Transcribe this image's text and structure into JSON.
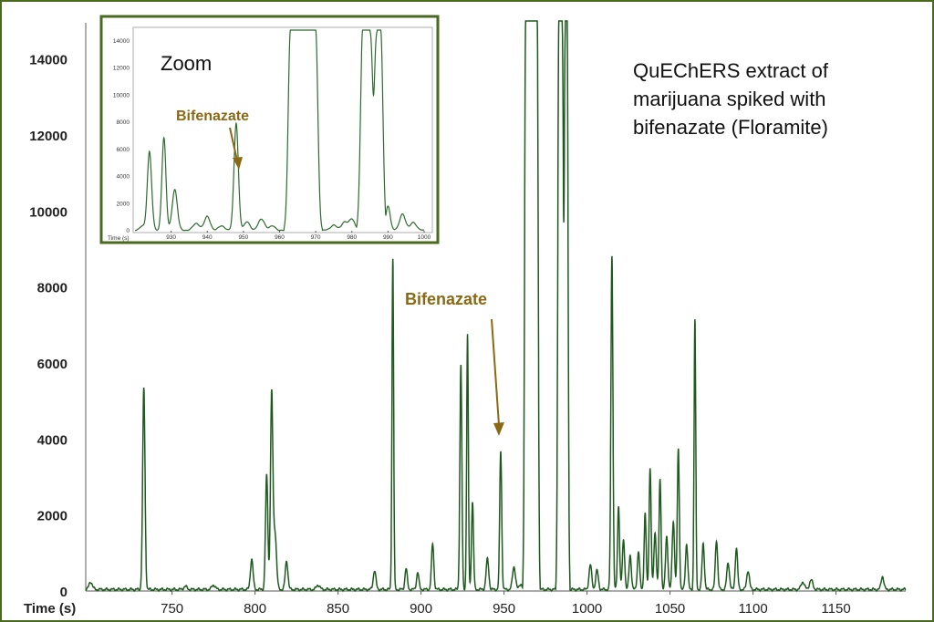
{
  "chart_data": [
    {
      "type": "line",
      "xlabel": "Time (s)",
      "ylabel": "",
      "xlim": [
        698,
        1192
      ],
      "ylim": [
        0,
        15000
      ],
      "xticks": [
        750,
        800,
        850,
        900,
        950,
        1000,
        1050,
        1100,
        1150
      ],
      "yticks": [
        0,
        2000,
        4000,
        6000,
        8000,
        10000,
        12000,
        14000
      ],
      "grid": false,
      "color": "#1e5a1e",
      "description": "QuEChERS extract of marijuana spiked with bifenazate (Floramite)",
      "annotation": {
        "text": "Bifenazate",
        "x": 948,
        "y": 3700
      },
      "peaks": [
        {
          "t": 701,
          "h": 200,
          "w": 1.0
        },
        {
          "t": 733,
          "h": 5300,
          "w": 0.7
        },
        {
          "t": 758,
          "h": 80,
          "w": 1.0
        },
        {
          "t": 775,
          "h": 120,
          "w": 1.0
        },
        {
          "t": 798,
          "h": 800,
          "w": 0.8
        },
        {
          "t": 807,
          "h": 3000,
          "w": 0.7
        },
        {
          "t": 810,
          "h": 5100,
          "w": 0.7
        },
        {
          "t": 812,
          "h": 1500,
          "w": 0.9
        },
        {
          "t": 819,
          "h": 750,
          "w": 0.8
        },
        {
          "t": 838,
          "h": 120,
          "w": 1.0
        },
        {
          "t": 872,
          "h": 500,
          "w": 0.8
        },
        {
          "t": 883,
          "h": 8700,
          "w": 0.5
        },
        {
          "t": 891,
          "h": 550,
          "w": 0.7
        },
        {
          "t": 898,
          "h": 450,
          "w": 0.7
        },
        {
          "t": 907,
          "h": 1200,
          "w": 0.7
        },
        {
          "t": 924,
          "h": 5900,
          "w": 0.6
        },
        {
          "t": 928,
          "h": 6700,
          "w": 0.5
        },
        {
          "t": 931,
          "h": 2300,
          "w": 0.6
        },
        {
          "t": 940,
          "h": 800,
          "w": 0.8
        },
        {
          "t": 948,
          "h": 3650,
          "w": 0.6
        },
        {
          "t": 956,
          "h": 600,
          "w": 0.9
        },
        {
          "t": 960,
          "h": 150,
          "w": 0.8
        },
        {
          "t": 1002,
          "h": 650,
          "w": 0.8
        },
        {
          "t": 1006,
          "h": 500,
          "w": 0.8
        },
        {
          "t": 1015,
          "h": 8800,
          "w": 0.6
        },
        {
          "t": 1019,
          "h": 2200,
          "w": 0.6
        },
        {
          "t": 1022,
          "h": 1300,
          "w": 0.7
        },
        {
          "t": 1026,
          "h": 900,
          "w": 0.7
        },
        {
          "t": 1031,
          "h": 1000,
          "w": 0.7
        },
        {
          "t": 1035,
          "h": 2000,
          "w": 0.6
        },
        {
          "t": 1038,
          "h": 3200,
          "w": 0.6
        },
        {
          "t": 1041,
          "h": 1500,
          "w": 0.7
        },
        {
          "t": 1044,
          "h": 2900,
          "w": 0.6
        },
        {
          "t": 1048,
          "h": 1400,
          "w": 0.7
        },
        {
          "t": 1052,
          "h": 1800,
          "w": 0.7
        },
        {
          "t": 1055,
          "h": 3700,
          "w": 0.6
        },
        {
          "t": 1060,
          "h": 1200,
          "w": 0.7
        },
        {
          "t": 1065,
          "h": 7100,
          "w": 0.5
        },
        {
          "t": 1070,
          "h": 1200,
          "w": 0.7
        },
        {
          "t": 1078,
          "h": 1300,
          "w": 0.7
        },
        {
          "t": 1085,
          "h": 700,
          "w": 0.8
        },
        {
          "t": 1090,
          "h": 1100,
          "w": 0.7
        },
        {
          "t": 1097,
          "h": 500,
          "w": 0.8
        },
        {
          "t": 1130,
          "h": 200,
          "w": 1.0
        },
        {
          "t": 1135,
          "h": 250,
          "w": 1.0
        },
        {
          "t": 1178,
          "h": 350,
          "w": 0.8
        }
      ],
      "saturated": [
        {
          "t0": 963,
          "t1": 970,
          "v": 15000
        },
        {
          "t0": 983,
          "t1": 988,
          "v": 15000
        }
      ],
      "dips": [
        {
          "t": 986,
          "v": 9700
        }
      ]
    },
    {
      "type": "line",
      "title": "Zoom",
      "xlabel": "Time (s)",
      "xlim": [
        920,
        1000
      ],
      "ylim": [
        0,
        15000
      ],
      "xticks": [
        930,
        940,
        950,
        960,
        970,
        980,
        990,
        1000
      ],
      "yticks": [
        0,
        2000,
        4000,
        6000,
        8000,
        10000,
        12000,
        14000
      ],
      "grid": false,
      "color": "#2e6b2e",
      "annotation": {
        "text": "Bifenazate",
        "x": 948,
        "y": 8000
      },
      "peaks": [
        {
          "t": 922,
          "h": 300,
          "w": 0.6
        },
        {
          "t": 924,
          "h": 5800,
          "w": 0.6
        },
        {
          "t": 928,
          "h": 6800,
          "w": 0.55
        },
        {
          "t": 931,
          "h": 3000,
          "w": 0.7
        },
        {
          "t": 937,
          "h": 500,
          "w": 0.9
        },
        {
          "t": 940,
          "h": 1000,
          "w": 0.8
        },
        {
          "t": 944,
          "h": 300,
          "w": 0.9
        },
        {
          "t": 948,
          "h": 7900,
          "w": 0.6
        },
        {
          "t": 951,
          "h": 600,
          "w": 0.8
        },
        {
          "t": 955,
          "h": 800,
          "w": 0.9
        },
        {
          "t": 958,
          "h": 300,
          "w": 0.8
        },
        {
          "t": 975,
          "h": 400,
          "w": 0.8
        },
        {
          "t": 978,
          "h": 600,
          "w": 0.8
        },
        {
          "t": 980,
          "h": 800,
          "w": 0.8
        },
        {
          "t": 990,
          "h": 1800,
          "w": 0.6
        },
        {
          "t": 994,
          "h": 1200,
          "w": 0.8
        },
        {
          "t": 997,
          "h": 600,
          "w": 0.8
        }
      ],
      "saturated": [
        {
          "t0": 963,
          "t1": 970,
          "v": 14800
        },
        {
          "t0": 983,
          "t1": 988,
          "v": 14800
        }
      ],
      "dips": [
        {
          "t": 986,
          "v": 10000
        }
      ]
    }
  ]
}
